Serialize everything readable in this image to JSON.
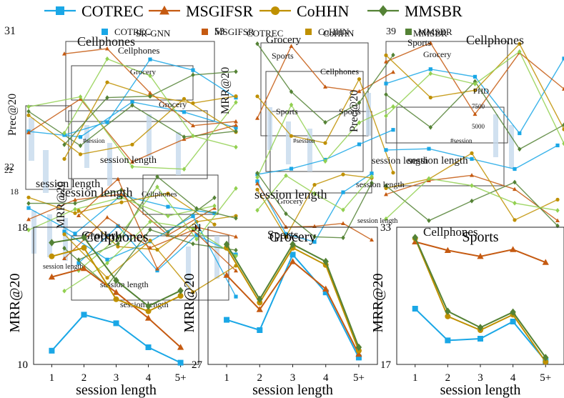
{
  "legend": [
    {
      "name": "COTREC",
      "color": "#1aa7e6",
      "marker": "square"
    },
    {
      "name": "MSGIFSR",
      "color": "#c55a11",
      "marker": "triangle"
    },
    {
      "name": "CoHHN",
      "color": "#bf9000",
      "marker": "circle"
    },
    {
      "name": "MMSBR",
      "color": "#548235",
      "marker": "diamond"
    }
  ],
  "overlay_text": {
    "legend2": [
      "COTREC",
      "MSGIFSR",
      "CoHHN",
      "MMSBR"
    ],
    "legend3": [
      "SR-GNN",
      "COTREC",
      "CoHHN",
      "MMSBR"
    ],
    "titles": [
      "Cellphones",
      "Cellphones",
      "Grocery",
      "Grocery",
      "Sports",
      "Sports",
      "Cellphones",
      "Grocery",
      "Sports"
    ],
    "misc": [
      "PHD",
      "Prec@20",
      "MRR@20",
      "session length",
      "#session"
    ]
  },
  "chart_data": [
    {
      "type": "line",
      "title": "Cellphones",
      "xlabel": "session length",
      "ylabel": "MRR@20",
      "categories": [
        "1",
        "2",
        "3",
        "4",
        "5+"
      ],
      "ylim": [
        10,
        18
      ],
      "ytick_labels": [
        "10",
        "18"
      ],
      "series": [
        {
          "name": "COTREC",
          "values": [
            10.8,
            12.9,
            12.4,
            11.0,
            10.1
          ]
        },
        {
          "name": "MSGIFSR",
          "values": [
            15.1,
            15.6,
            14.2,
            12.7,
            11.0
          ]
        },
        {
          "name": "CoHHN",
          "values": [
            16.3,
            16.8,
            13.8,
            13.1,
            14.0
          ]
        },
        {
          "name": "MMSBR",
          "values": [
            17.1,
            17.4,
            14.9,
            13.4,
            14.3
          ]
        }
      ]
    },
    {
      "type": "line",
      "title": "Grocery",
      "xlabel": "session length",
      "ylabel": "MRR@20",
      "categories": [
        "1",
        "2",
        "3",
        "4",
        "5+"
      ],
      "ylim": [
        27,
        31
      ],
      "ytick_labels": [
        "27",
        "31"
      ],
      "series": [
        {
          "name": "COTREC",
          "values": [
            28.3,
            28.0,
            30.2,
            29.1,
            27.2
          ]
        },
        {
          "name": "MSGIFSR",
          "values": [
            29.6,
            28.6,
            30.0,
            29.2,
            27.3
          ]
        },
        {
          "name": "CoHHN",
          "values": [
            30.4,
            28.8,
            30.4,
            29.9,
            27.4
          ]
        },
        {
          "name": "MMSBR",
          "values": [
            30.5,
            28.9,
            30.5,
            30.0,
            27.5
          ]
        }
      ]
    },
    {
      "type": "line",
      "title": "Sports",
      "xlabel": "session length",
      "ylabel": "MRR@20",
      "categories": [
        "1",
        "2",
        "3",
        "4",
        "5+"
      ],
      "ylim": [
        17,
        33
      ],
      "ytick_labels": [
        "17",
        "33"
      ],
      "series": [
        {
          "name": "COTREC",
          "values": [
            23.5,
            19.8,
            20.0,
            22.0,
            17.4
          ]
        },
        {
          "name": "MSGIFSR",
          "values": [
            31.3,
            30.3,
            29.6,
            30.4,
            28.9
          ]
        },
        {
          "name": "CoHHN",
          "values": [
            31.7,
            22.6,
            21.0,
            22.8,
            17.3
          ]
        },
        {
          "name": "MMSBR",
          "values": [
            31.8,
            23.2,
            21.3,
            23.1,
            17.8
          ]
        }
      ]
    }
  ]
}
